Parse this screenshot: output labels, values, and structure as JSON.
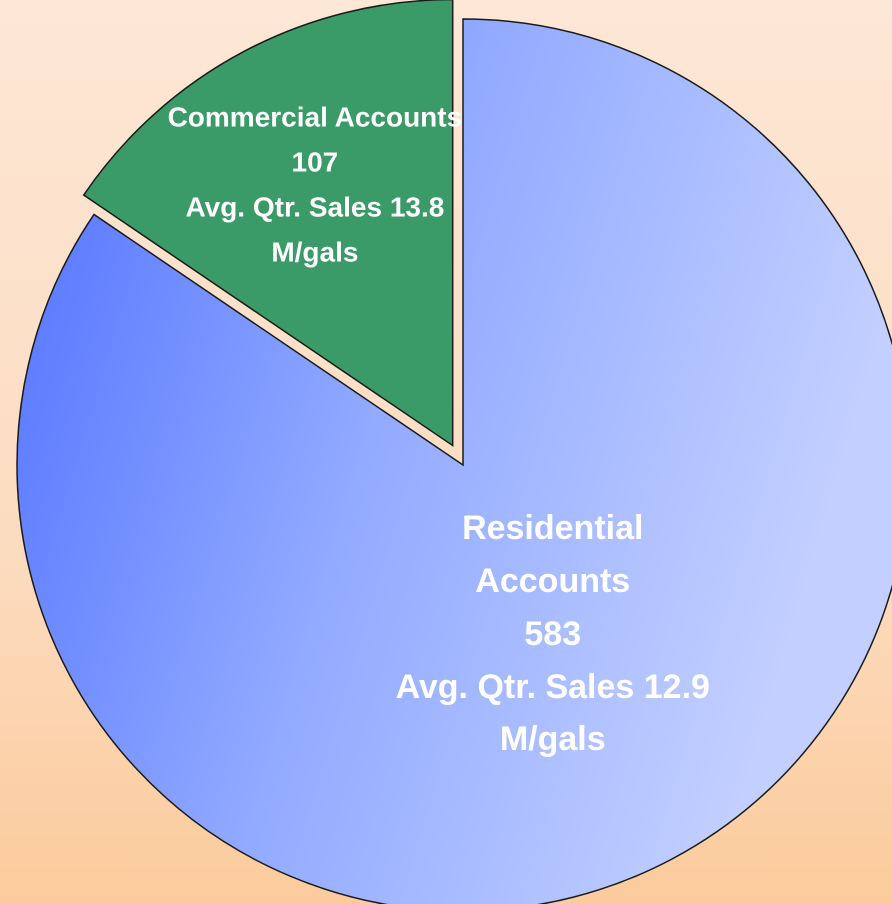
{
  "chart_data": {
    "type": "pie",
    "categories": [
      "Residential Accounts",
      "Commercial Accounts"
    ],
    "values": [
      583,
      107
    ],
    "sales_labels": [
      "Avg. Qtr. Sales 12.9 M/gals",
      "Avg. Qtr. Sales 13.8 M/gals"
    ],
    "colors": [
      "#93abff",
      "#3a9a68"
    ],
    "exploded": [
      false,
      true
    ]
  }
}
